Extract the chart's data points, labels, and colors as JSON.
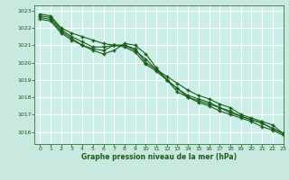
{
  "title": "Graphe pression niveau de la mer (hPa)",
  "background_color": "#c8e8e0",
  "plot_bg_color": "#cceee8",
  "grid_color": "#ffffff",
  "line_color": "#1a5c1a",
  "text_color": "#1a5c1a",
  "xlim": [
    -0.5,
    23
  ],
  "ylim": [
    1015.3,
    1023.3
  ],
  "xticks": [
    0,
    1,
    2,
    3,
    4,
    5,
    6,
    7,
    8,
    9,
    10,
    11,
    12,
    13,
    14,
    15,
    16,
    17,
    18,
    19,
    20,
    21,
    22,
    23
  ],
  "yticks": [
    1016,
    1017,
    1018,
    1019,
    1020,
    1021,
    1022,
    1023
  ],
  "series": [
    [
      1022.8,
      1022.7,
      1022.0,
      1021.7,
      1021.5,
      1021.3,
      1021.1,
      1021.0,
      1021.0,
      1020.8,
      1020.0,
      1019.6,
      1019.2,
      1018.8,
      1018.4,
      1018.1,
      1017.9,
      1017.6,
      1017.4,
      1017.0,
      1016.8,
      1016.6,
      1016.4,
      1015.9
    ],
    [
      1022.7,
      1022.6,
      1021.9,
      1021.5,
      1021.2,
      1020.9,
      1020.9,
      1021.0,
      1020.9,
      1020.6,
      1019.9,
      1019.5,
      1019.0,
      1018.5,
      1018.1,
      1017.9,
      1017.7,
      1017.4,
      1017.2,
      1016.9,
      1016.7,
      1016.5,
      1016.2,
      1015.9
    ],
    [
      1022.6,
      1022.5,
      1021.8,
      1021.4,
      1021.0,
      1020.8,
      1020.7,
      1021.0,
      1021.0,
      1020.7,
      1020.2,
      1019.6,
      1019.0,
      1018.5,
      1018.0,
      1017.8,
      1017.6,
      1017.4,
      1017.1,
      1016.9,
      1016.7,
      1016.5,
      1016.2,
      1015.9
    ],
    [
      1022.5,
      1022.4,
      1021.7,
      1021.3,
      1021.0,
      1020.7,
      1020.5,
      1020.7,
      1021.1,
      1021.0,
      1020.5,
      1019.7,
      1019.0,
      1018.3,
      1018.0,
      1017.7,
      1017.5,
      1017.2,
      1017.0,
      1016.8,
      1016.6,
      1016.3,
      1016.1,
      1015.8
    ]
  ]
}
